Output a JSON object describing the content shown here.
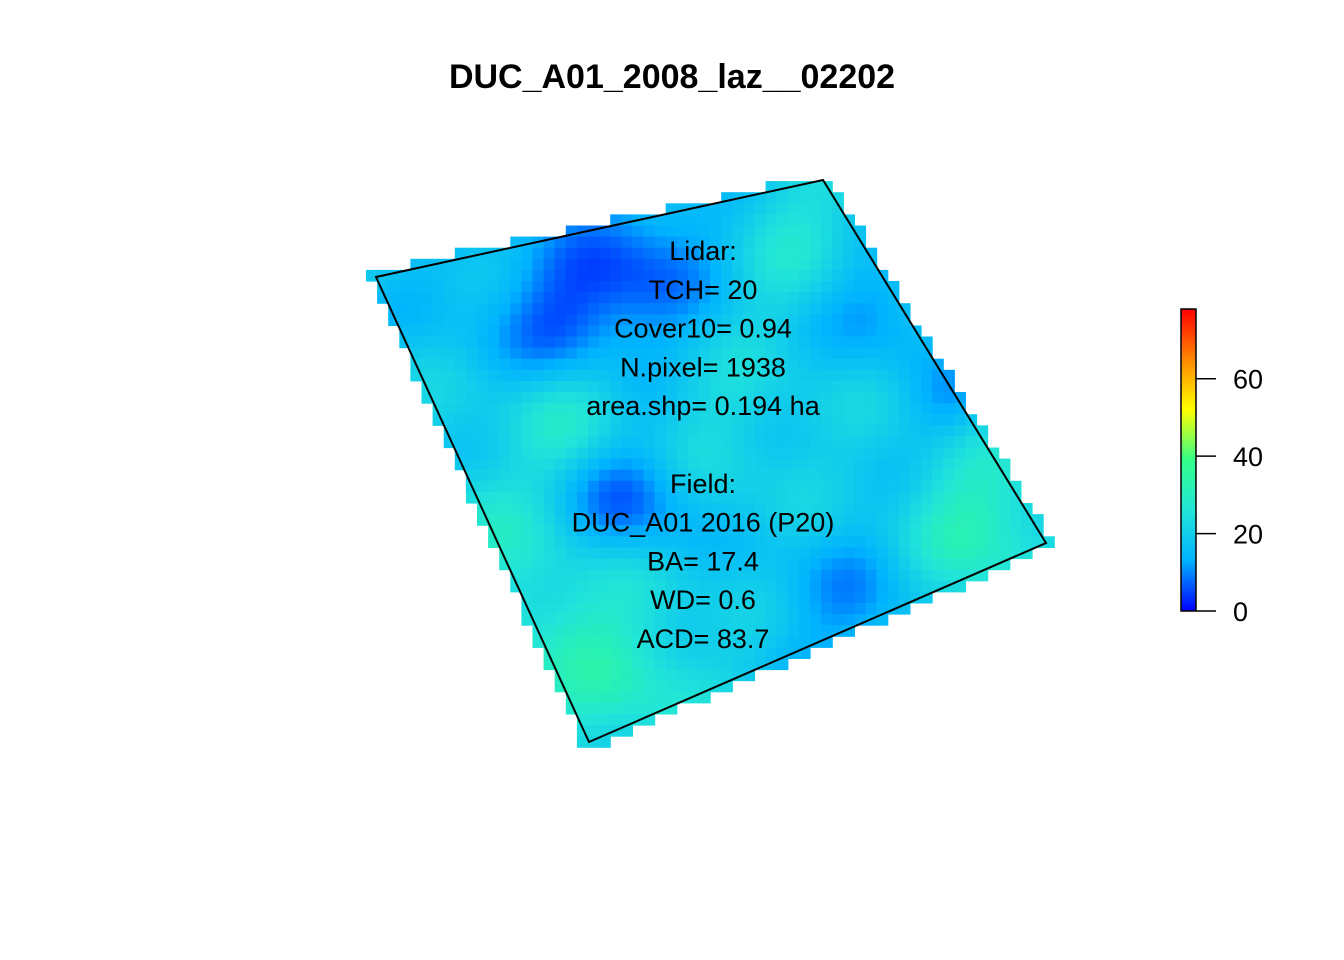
{
  "chart_data": {
    "type": "heatmap",
    "title": "DUC_A01_2008_laz__02202",
    "colorbar": {
      "range": [
        0,
        78
      ],
      "ticks": [
        0,
        20,
        40,
        60
      ],
      "colors": [
        "#0000ff",
        "#00b2ff",
        "#22e5d8",
        "#33ff88",
        "#ffff00",
        "#ff8800",
        "#ff0000"
      ]
    },
    "plot_outline_corners": [
      [
        0,
        0
      ],
      [
        1,
        0
      ],
      [
        1,
        1
      ],
      [
        0,
        1
      ]
    ],
    "annotation": {
      "lidar": [
        "Lidar:",
        "TCH= 20",
        "Cover10= 0.94",
        "N.pixel= 1938",
        "area.shp= 0.194 ha"
      ],
      "field": [
        "Field:",
        "DUC_A01 2016 (P20)",
        "BA= 17.4",
        "WD= 0.6",
        "ACD= 83.7"
      ]
    }
  }
}
